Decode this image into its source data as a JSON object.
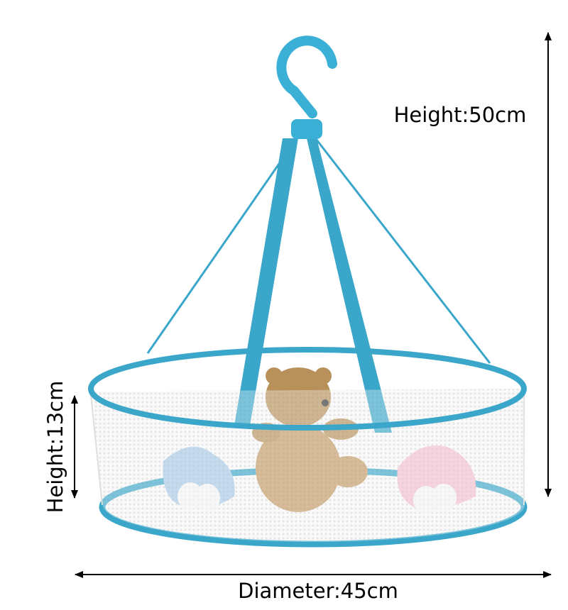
{
  "labels": {
    "total_height": "Height:50cm",
    "basket_height": "Height:13cm",
    "diameter": "Diameter:45cm"
  }
}
